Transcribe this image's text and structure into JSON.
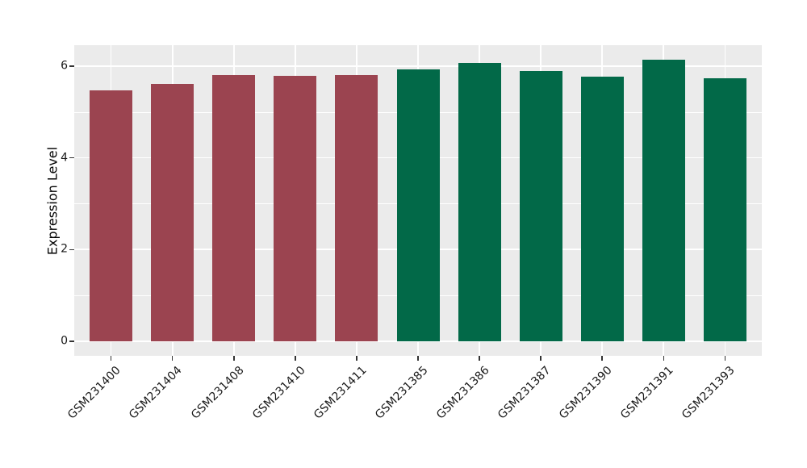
{
  "figure": {
    "background": "#FFFFFF",
    "panel_background": "#EBEBEB",
    "grid_color": "#FFFFFF",
    "tick_color": "#333333",
    "axis_text_color": "#1A1A1A"
  },
  "chart_data": {
    "type": "bar",
    "title": "",
    "xlabel": "",
    "ylabel": "Expression Level",
    "categories": [
      "GSM231400",
      "GSM231404",
      "GSM231408",
      "GSM231410",
      "GSM231411",
      "GSM231385",
      "GSM231386",
      "GSM231387",
      "GSM231390",
      "GSM231391",
      "GSM231393"
    ],
    "values": [
      5.47,
      5.61,
      5.81,
      5.79,
      5.8,
      5.93,
      6.07,
      5.89,
      5.77,
      6.14,
      5.73
    ],
    "bar_colors": [
      "#9B4450",
      "#9B4450",
      "#9B4450",
      "#9B4450",
      "#9B4450",
      "#026948",
      "#026948",
      "#026948",
      "#026948",
      "#026948",
      "#026948"
    ],
    "group_colors": {
      "left_group": "#9B4450",
      "right_group": "#026948"
    },
    "ylim": [
      -0.32,
      6.46
    ],
    "xlim_units": [
      0.4,
      11.6
    ],
    "bar_width_units": 0.7,
    "yticks_major": [
      0,
      2,
      4,
      6
    ],
    "yticks_minor": [
      1,
      3,
      5
    ],
    "ytick_labels": [
      "0",
      "2",
      "4",
      "6"
    ],
    "grid": true,
    "x_tick_rotation_deg": 45,
    "legend_position": "none"
  }
}
